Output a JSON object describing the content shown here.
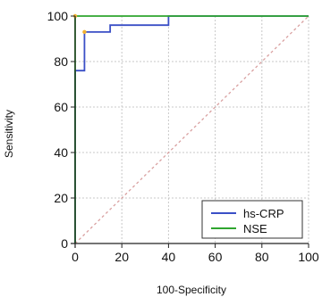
{
  "chart_data": {
    "type": "line",
    "xlabel": "100-Specificity",
    "ylabel": "Sensitivity",
    "xlim": [
      0,
      100
    ],
    "ylim": [
      0,
      100
    ],
    "x_ticks": [
      0,
      20,
      40,
      60,
      80,
      100
    ],
    "y_ticks": [
      0,
      20,
      40,
      60,
      80,
      100
    ],
    "grid": true,
    "legend_position": "bottom-right",
    "series": [
      {
        "name": "hs-CRP",
        "color": "#3a4fc6",
        "points": [
          [
            0,
            0
          ],
          [
            0,
            76
          ],
          [
            4,
            76
          ],
          [
            4,
            93
          ],
          [
            15,
            93
          ],
          [
            15,
            96
          ],
          [
            40,
            96
          ],
          [
            40,
            100
          ],
          [
            100,
            100
          ]
        ]
      },
      {
        "name": "NSE",
        "color": "#2fa52f",
        "points": [
          [
            0,
            0
          ],
          [
            0,
            100
          ],
          [
            100,
            100
          ]
        ]
      }
    ],
    "reference_line": {
      "color": "#d9a0a0",
      "points": [
        [
          0,
          0
        ],
        [
          100,
          100
        ]
      ]
    },
    "highlight_markers": [
      {
        "series": "hs-CRP",
        "x": 4,
        "y": 93,
        "color": "#f0b030"
      },
      {
        "series": "NSE",
        "x": 0,
        "y": 100,
        "color": "#f0b030"
      }
    ]
  }
}
